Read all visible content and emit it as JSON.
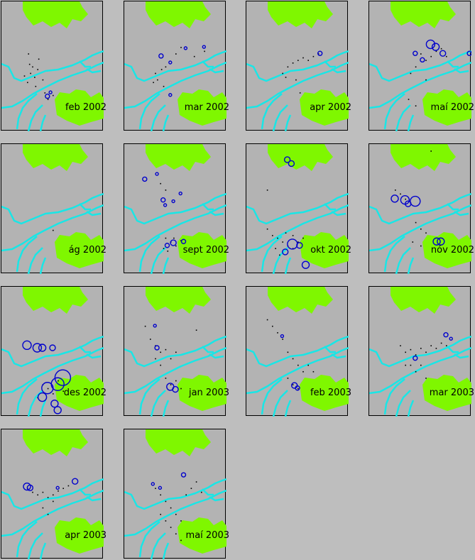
{
  "colors": {
    "land": "#7ff700",
    "coast": "#19e6e6",
    "events": "#0000cc",
    "points": "#000000",
    "panel_bg": "#b3b3b3",
    "page_bg": "#bebebe"
  },
  "panels": [
    {
      "label": "feb 2002",
      "dots": [
        [
          0.28,
          0.55
        ],
        [
          0.3,
          0.5
        ],
        [
          0.32,
          0.58
        ],
        [
          0.25,
          0.62
        ],
        [
          0.35,
          0.52
        ],
        [
          0.22,
          0.57
        ],
        [
          0.4,
          0.6
        ],
        [
          0.33,
          0.65
        ],
        [
          0.27,
          0.48
        ],
        [
          0.36,
          0.44
        ],
        [
          0.26,
          0.4
        ],
        [
          0.45,
          0.75
        ],
        [
          0.5,
          0.72
        ],
        [
          0.42,
          0.7
        ]
      ],
      "circles": [
        [
          0.45,
          0.73,
          3
        ],
        [
          0.48,
          0.7,
          2
        ]
      ]
    },
    {
      "label": "mar 2002",
      "dots": [
        [
          0.3,
          0.55
        ],
        [
          0.32,
          0.6
        ],
        [
          0.28,
          0.62
        ],
        [
          0.36,
          0.52
        ],
        [
          0.4,
          0.5
        ],
        [
          0.5,
          0.4
        ],
        [
          0.55,
          0.35
        ],
        [
          0.68,
          0.42
        ],
        [
          0.78,
          0.38
        ],
        [
          0.38,
          0.65
        ]
      ],
      "circles": [
        [
          0.36,
          0.42,
          3
        ],
        [
          0.45,
          0.47,
          2
        ],
        [
          0.6,
          0.36,
          2
        ],
        [
          0.78,
          0.35,
          2
        ],
        [
          0.45,
          0.72,
          2
        ]
      ]
    },
    {
      "label": "apr 2002",
      "dots": [
        [
          0.35,
          0.55
        ],
        [
          0.4,
          0.5
        ],
        [
          0.45,
          0.47
        ],
        [
          0.5,
          0.45
        ],
        [
          0.55,
          0.43
        ],
        [
          0.6,
          0.45
        ],
        [
          0.65,
          0.42
        ],
        [
          0.7,
          0.4
        ],
        [
          0.48,
          0.6
        ],
        [
          0.52,
          0.7
        ],
        [
          0.38,
          0.58
        ]
      ],
      "circles": [
        [
          0.72,
          0.4,
          3
        ]
      ]
    },
    {
      "label": "maí 2002",
      "dots": [
        [
          0.5,
          0.4
        ],
        [
          0.55,
          0.45
        ],
        [
          0.45,
          0.5
        ],
        [
          0.6,
          0.42
        ],
        [
          0.65,
          0.38
        ],
        [
          0.7,
          0.36
        ],
        [
          0.4,
          0.55
        ],
        [
          0.38,
          0.75
        ],
        [
          0.45,
          0.8
        ],
        [
          0.55,
          0.6
        ],
        [
          0.75,
          0.42
        ]
      ],
      "circles": [
        [
          0.6,
          0.33,
          6
        ],
        [
          0.65,
          0.35,
          5
        ],
        [
          0.72,
          0.4,
          4
        ],
        [
          0.45,
          0.4,
          3
        ],
        [
          0.52,
          0.45,
          3
        ],
        [
          0.98,
          0.4,
          3
        ]
      ]
    },
    {
      "label": "ág 2002",
      "dots": [
        [
          0.5,
          0.66
        ]
      ],
      "circles": []
    },
    {
      "label": "sept 2002",
      "dots": [
        [
          0.4,
          0.72
        ],
        [
          0.45,
          0.75
        ],
        [
          0.5,
          0.78
        ],
        [
          0.38,
          0.8
        ],
        [
          0.42,
          0.82
        ],
        [
          0.48,
          0.72
        ],
        [
          0.55,
          0.74
        ],
        [
          0.35,
          0.3
        ],
        [
          0.4,
          0.35
        ]
      ],
      "circles": [
        [
          0.2,
          0.27,
          3
        ],
        [
          0.32,
          0.23,
          2
        ],
        [
          0.38,
          0.43,
          3
        ],
        [
          0.4,
          0.47,
          2
        ],
        [
          0.48,
          0.44,
          2
        ],
        [
          0.55,
          0.38,
          2
        ],
        [
          -0.03,
          0.43,
          2
        ],
        [
          0.48,
          0.76,
          4
        ],
        [
          0.42,
          0.78,
          3
        ],
        [
          0.58,
          0.75,
          3
        ]
      ]
    },
    {
      "label": "okt 2002",
      "dots": [
        [
          0.2,
          0.65
        ],
        [
          0.25,
          0.7
        ],
        [
          0.3,
          0.72
        ],
        [
          0.35,
          0.75
        ],
        [
          0.4,
          0.78
        ],
        [
          0.45,
          0.8
        ],
        [
          0.28,
          0.8
        ],
        [
          0.38,
          0.68
        ],
        [
          0.45,
          0.7
        ],
        [
          0.5,
          0.75
        ],
        [
          0.55,
          0.72
        ],
        [
          0.32,
          0.85
        ],
        [
          0.2,
          0.35
        ]
      ],
      "circles": [
        [
          0.45,
          0.77,
          7
        ],
        [
          0.38,
          0.83,
          4
        ],
        [
          0.52,
          0.78,
          4
        ],
        [
          0.4,
          0.12,
          4
        ],
        [
          0.44,
          0.15,
          4
        ],
        [
          0.58,
          0.93,
          5
        ]
      ]
    },
    {
      "label": "nóv 2002",
      "dots": [
        [
          0.25,
          0.35
        ],
        [
          0.3,
          0.38
        ],
        [
          0.35,
          0.42
        ],
        [
          0.4,
          0.45
        ],
        [
          0.45,
          0.6
        ],
        [
          0.5,
          0.65
        ],
        [
          0.55,
          0.68
        ],
        [
          0.42,
          0.75
        ],
        [
          0.5,
          0.78
        ],
        [
          0.6,
          0.05
        ]
      ],
      "circles": [
        [
          0.25,
          0.42,
          5
        ],
        [
          0.35,
          0.43,
          6
        ],
        [
          0.45,
          0.44,
          7
        ],
        [
          0.38,
          0.46,
          4
        ],
        [
          0.66,
          0.75,
          5
        ],
        [
          0.7,
          0.75,
          5
        ]
      ]
    },
    {
      "label": "des 2002",
      "dots": [
        [
          0.4,
          0.75
        ],
        [
          0.45,
          0.78
        ],
        [
          0.5,
          0.82
        ],
        [
          0.55,
          0.72
        ],
        [
          0.35,
          0.85
        ],
        [
          0.6,
          0.8
        ]
      ],
      "circles": [
        [
          0.25,
          0.45,
          6
        ],
        [
          0.35,
          0.47,
          6
        ],
        [
          0.4,
          0.47,
          5
        ],
        [
          0.5,
          0.47,
          4
        ],
        [
          0.45,
          0.78,
          8
        ],
        [
          0.55,
          0.75,
          9
        ],
        [
          0.6,
          0.7,
          11
        ],
        [
          0.4,
          0.85,
          6
        ],
        [
          0.52,
          0.9,
          5
        ],
        [
          0.55,
          0.95,
          5
        ]
      ]
    },
    {
      "label": "jan 2003",
      "dots": [
        [
          0.2,
          0.3
        ],
        [
          0.25,
          0.4
        ],
        [
          0.3,
          0.45
        ],
        [
          0.35,
          0.5
        ],
        [
          0.4,
          0.48
        ],
        [
          0.45,
          0.55
        ],
        [
          0.5,
          0.5
        ],
        [
          0.3,
          0.55
        ],
        [
          0.35,
          0.6
        ],
        [
          0.4,
          0.7
        ],
        [
          0.45,
          0.75
        ],
        [
          0.5,
          0.72
        ],
        [
          0.55,
          0.78
        ],
        [
          0.7,
          0.33
        ]
      ],
      "circles": [
        [
          0.3,
          0.3,
          2
        ],
        [
          0.32,
          0.47,
          3
        ],
        [
          0.45,
          0.77,
          5
        ],
        [
          0.5,
          0.79,
          4
        ]
      ]
    },
    {
      "label": "feb 2003",
      "dots": [
        [
          0.2,
          0.25
        ],
        [
          0.25,
          0.3
        ],
        [
          0.3,
          0.35
        ],
        [
          0.35,
          0.4
        ],
        [
          0.4,
          0.5
        ],
        [
          0.45,
          0.55
        ],
        [
          0.5,
          0.6
        ],
        [
          0.55,
          0.65
        ],
        [
          0.6,
          0.6
        ],
        [
          0.65,
          0.65
        ],
        [
          0.4,
          0.7
        ],
        [
          0.45,
          0.75
        ],
        [
          0.5,
          0.78
        ]
      ],
      "circles": [
        [
          0.47,
          0.76,
          4
        ],
        [
          0.5,
          0.78,
          3
        ],
        [
          0.35,
          0.38,
          2
        ]
      ]
    },
    {
      "label": "mar 2003",
      "dots": [
        [
          0.3,
          0.45
        ],
        [
          0.35,
          0.5
        ],
        [
          0.4,
          0.48
        ],
        [
          0.45,
          0.52
        ],
        [
          0.5,
          0.47
        ],
        [
          0.55,
          0.5
        ],
        [
          0.6,
          0.45
        ],
        [
          0.65,
          0.47
        ],
        [
          0.7,
          0.43
        ],
        [
          0.75,
          0.45
        ],
        [
          0.4,
          0.6
        ],
        [
          0.45,
          0.65
        ],
        [
          0.5,
          0.6
        ],
        [
          0.55,
          0.7
        ],
        [
          0.35,
          0.6
        ]
      ],
      "circles": [
        [
          0.45,
          0.55,
          3
        ],
        [
          0.75,
          0.37,
          3
        ],
        [
          0.8,
          0.4,
          2
        ]
      ]
    },
    {
      "label": "apr 2003",
      "dots": [
        [
          0.25,
          0.45
        ],
        [
          0.3,
          0.48
        ],
        [
          0.35,
          0.5
        ],
        [
          0.4,
          0.48
        ],
        [
          0.45,
          0.52
        ],
        [
          0.5,
          0.5
        ],
        [
          0.55,
          0.47
        ],
        [
          0.6,
          0.45
        ],
        [
          0.65,
          0.43
        ],
        [
          0.4,
          0.6
        ],
        [
          0.45,
          0.65
        ],
        [
          0.5,
          0.55
        ]
      ],
      "circles": [
        [
          0.25,
          0.44,
          5
        ],
        [
          0.28,
          0.45,
          4
        ],
        [
          0.72,
          0.4,
          4
        ],
        [
          0.55,
          0.45,
          2
        ]
      ]
    },
    {
      "label": "maí 2003",
      "dots": [
        [
          0.3,
          0.45
        ],
        [
          0.35,
          0.5
        ],
        [
          0.4,
          0.55
        ],
        [
          0.45,
          0.6
        ],
        [
          0.5,
          0.65
        ],
        [
          0.55,
          0.7
        ],
        [
          0.35,
          0.65
        ],
        [
          0.4,
          0.7
        ],
        [
          0.45,
          0.75
        ],
        [
          0.5,
          0.8
        ],
        [
          0.55,
          0.85
        ],
        [
          0.6,
          0.5
        ],
        [
          0.65,
          0.45
        ],
        [
          0.7,
          0.4
        ],
        [
          0.75,
          0.48
        ]
      ],
      "circles": [
        [
          0.28,
          0.42,
          2
        ],
        [
          0.35,
          0.45,
          2
        ],
        [
          0.58,
          0.35,
          3
        ]
      ]
    }
  ]
}
